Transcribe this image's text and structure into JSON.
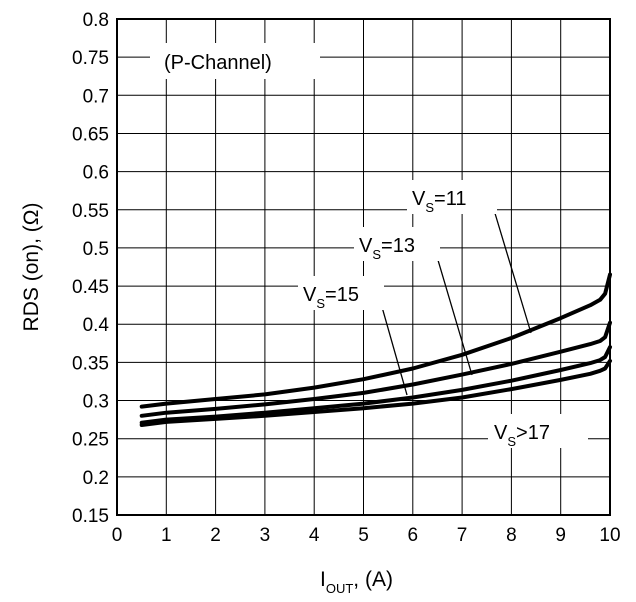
{
  "chart_data": {
    "type": "line",
    "title": "",
    "xlabel": {
      "main": "I",
      "sub": "OUT",
      "rest": ", (A)"
    },
    "ylabel": "RDS (on), (Ω)",
    "xlim": [
      0,
      10
    ],
    "ylim": [
      0.15,
      0.8
    ],
    "xticks": [
      "0",
      "1",
      "2",
      "3",
      "4",
      "5",
      "6",
      "7",
      "8",
      "9",
      "10"
    ],
    "yticks": [
      "0.15",
      "0.2",
      "0.25",
      "0.3",
      "0.35",
      "0.4",
      "0.45",
      "0.5",
      "0.55",
      "0.6",
      "0.65",
      "0.7",
      "0.75",
      "0.8"
    ],
    "grid": true,
    "annotation": "(P-Channel)",
    "series": [
      {
        "name": {
          "main": "V",
          "sub": "S",
          "rest": "=11"
        },
        "x": [
          0.5,
          1,
          2,
          3,
          4,
          5,
          6,
          7,
          8,
          9,
          9.6,
          9.8,
          9.9,
          10
        ],
        "y": [
          0.292,
          0.296,
          0.302,
          0.308,
          0.317,
          0.328,
          0.342,
          0.36,
          0.382,
          0.408,
          0.425,
          0.432,
          0.44,
          0.465
        ]
      },
      {
        "name": {
          "main": "V",
          "sub": "S",
          "rest": "=13"
        },
        "x": [
          0.5,
          1,
          2,
          3,
          4,
          5,
          6,
          7,
          8,
          9,
          9.6,
          9.8,
          9.9,
          10
        ],
        "y": [
          0.28,
          0.284,
          0.289,
          0.295,
          0.302,
          0.31,
          0.321,
          0.334,
          0.348,
          0.364,
          0.374,
          0.378,
          0.383,
          0.402
        ]
      },
      {
        "name": {
          "main": "V",
          "sub": "S",
          "rest": "=15"
        },
        "x": [
          0.5,
          1,
          2,
          3,
          4,
          5,
          6,
          7,
          8,
          9,
          9.6,
          9.8,
          9.9,
          10
        ],
        "y": [
          0.271,
          0.275,
          0.279,
          0.284,
          0.29,
          0.296,
          0.304,
          0.314,
          0.326,
          0.34,
          0.349,
          0.353,
          0.357,
          0.37
        ]
      },
      {
        "name": {
          "main": "V",
          "sub": "S",
          "rest": ">17"
        },
        "x": [
          0.5,
          1,
          2,
          3,
          4,
          5,
          6,
          7,
          8,
          9,
          9.6,
          9.8,
          9.9,
          10
        ],
        "y": [
          0.268,
          0.272,
          0.276,
          0.28,
          0.285,
          0.29,
          0.296,
          0.304,
          0.315,
          0.327,
          0.335,
          0.339,
          0.342,
          0.352
        ]
      }
    ]
  }
}
